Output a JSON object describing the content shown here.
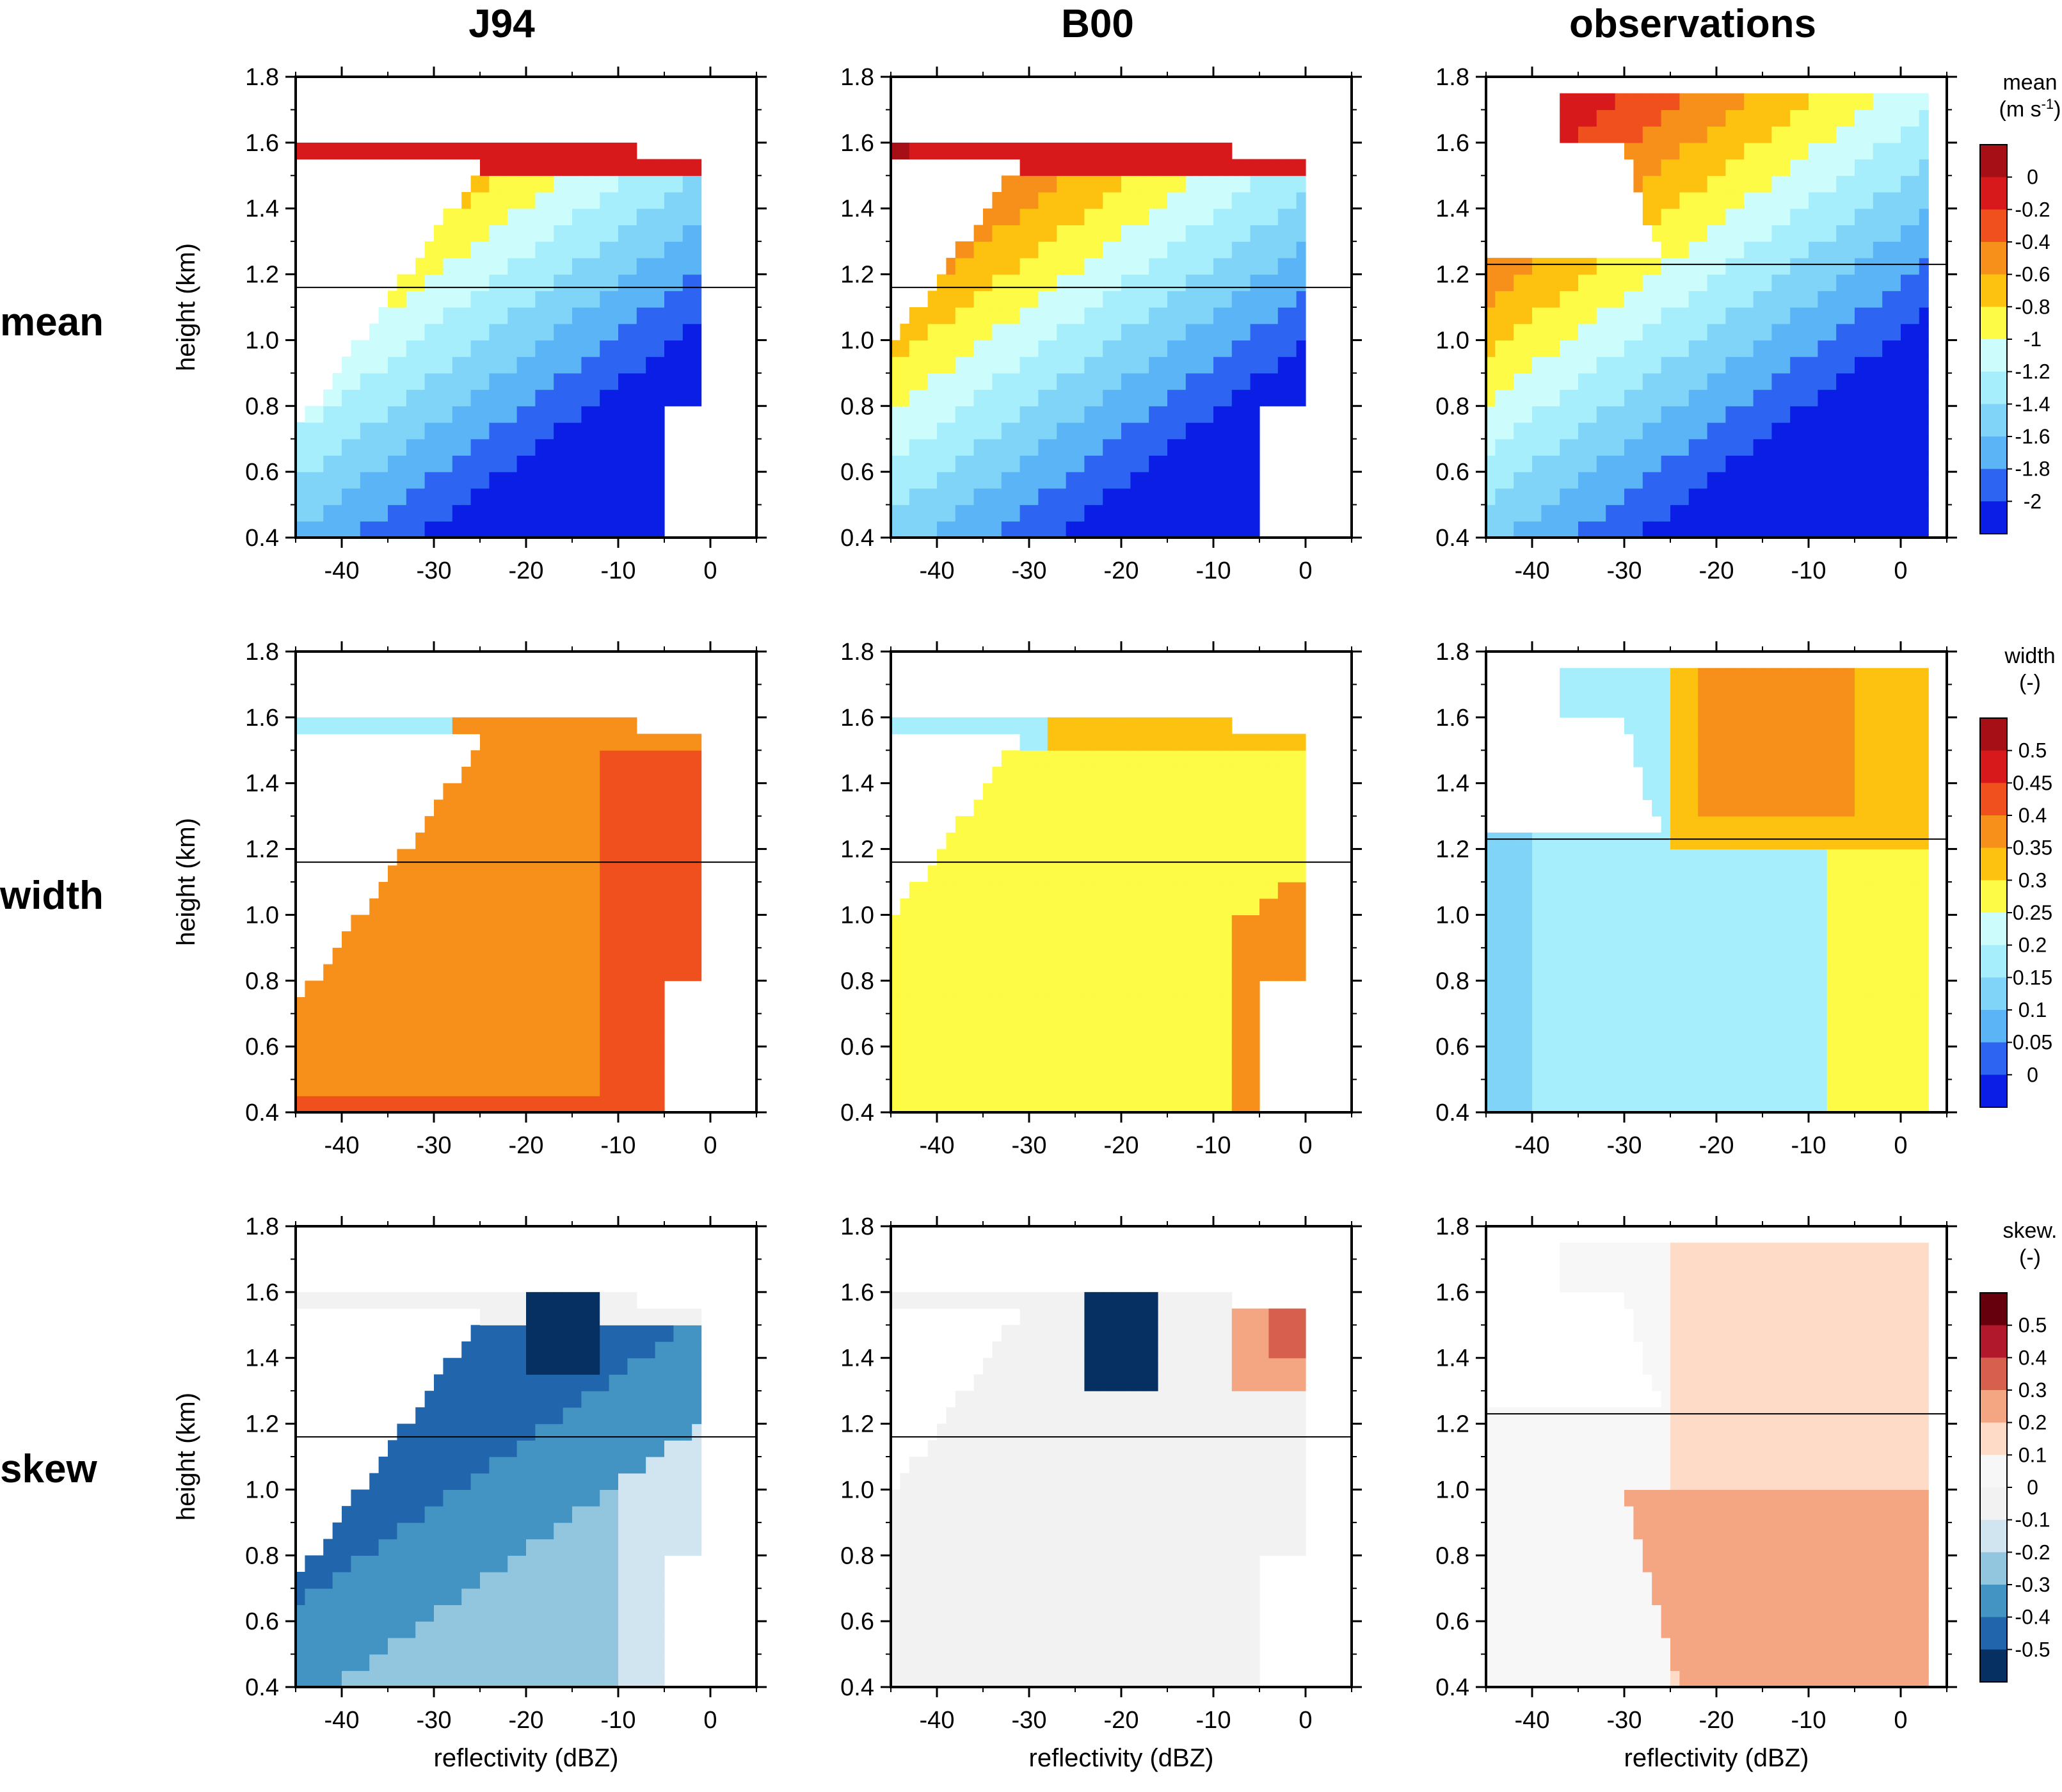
{
  "columns": [
    "J94",
    "B00",
    "observations"
  ],
  "rows": [
    "mean",
    "width",
    "skew"
  ],
  "x_axis": {
    "label": "reflectivity (dBZ)",
    "ticks": [
      "-40",
      "-30",
      "-20",
      "-10",
      "0"
    ]
  },
  "y_axis": {
    "label": "height (km)",
    "ticks": [
      "0.4",
      "0.6",
      "0.8",
      "1.0",
      "1.2",
      "1.4",
      "1.6",
      "1.8"
    ]
  },
  "colorbars": [
    {
      "title": "mean",
      "units": "(m s",
      "units_sup": "-1",
      "units_tail": ")",
      "labels": [
        "0",
        "-0.2",
        "-0.4",
        "-0.6",
        "-0.8",
        "-1",
        "-1.2",
        "-1.4",
        "-1.6",
        "-1.8",
        "-2"
      ],
      "colors": [
        "#a50f15",
        "#d7191c",
        "#f0501e",
        "#f7901b",
        "#fcc20f",
        "#fdfb45",
        "#ccfcfc",
        "#a6eefc",
        "#7fd4f8",
        "#5bb4f5",
        "#2e64f2",
        "#0a1ee6"
      ]
    },
    {
      "title": "width",
      "units": "(-)",
      "units_sup": "",
      "units_tail": "",
      "labels": [
        "0.5",
        "0.45",
        "0.4",
        "0.35",
        "0.3",
        "0.25",
        "0.2",
        "0.15",
        "0.1",
        "0.05",
        "0"
      ],
      "colors": [
        "#a50f15",
        "#d7191c",
        "#f0501e",
        "#f7901b",
        "#fcc20f",
        "#fdfb45",
        "#ccfcfc",
        "#a6eefc",
        "#7fd4f8",
        "#5bb4f5",
        "#2e64f2",
        "#0a1ee6"
      ]
    },
    {
      "title": "skew.",
      "units": "(-)",
      "units_sup": "",
      "units_tail": "",
      "labels": [
        "0.5",
        "0.4",
        "0.3",
        "0.2",
        "0.1",
        "0",
        "-0.1",
        "-0.2",
        "-0.3",
        "-0.4",
        "-0.5"
      ],
      "colors": [
        "#67000d",
        "#b2182b",
        "#d6604d",
        "#f4a582",
        "#fddbc7",
        "#f7f7f7",
        "#f2f2f2",
        "#d1e5f0",
        "#92c5de",
        "#4393c3",
        "#2166ac",
        "#053061"
      ]
    }
  ],
  "chart_data": {
    "type": "heatmap",
    "xlabel": "reflectivity (dBZ)",
    "ylabel": "height (km)",
    "xlim": [
      -45,
      5
    ],
    "ylim": [
      0.4,
      1.8
    ],
    "panels": [
      {
        "column": "J94",
        "row": "mean",
        "horizontal_line_km": 1.16
      },
      {
        "column": "B00",
        "row": "mean",
        "horizontal_line_km": 1.16
      },
      {
        "column": "observations",
        "row": "mean",
        "horizontal_line_km": 1.23
      },
      {
        "column": "J94",
        "row": "width",
        "horizontal_line_km": 1.16
      },
      {
        "column": "B00",
        "row": "width",
        "horizontal_line_km": 1.16
      },
      {
        "column": "observations",
        "row": "width",
        "horizontal_line_km": 1.23
      },
      {
        "column": "J94",
        "row": "skew",
        "horizontal_line_km": 1.16
      },
      {
        "column": "B00",
        "row": "skew",
        "horizontal_line_km": 1.16
      },
      {
        "column": "observations",
        "row": "skew",
        "horizontal_line_km": 1.23
      }
    ]
  }
}
